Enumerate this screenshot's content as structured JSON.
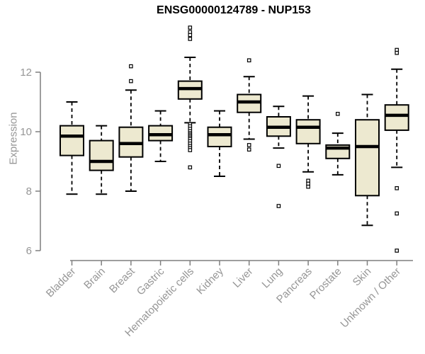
{
  "chart_data": {
    "type": "boxplot",
    "title": "ENSG00000124789 - NUP153",
    "ylabel": "Expression",
    "xlabel": "",
    "yticks": [
      6,
      8,
      10,
      12
    ],
    "ylim": [
      5.9,
      13.6
    ],
    "grid": false,
    "legend_position": "none",
    "box_fill": "#EDE9D0",
    "box_stroke": "#000000",
    "axis_color": "#7F7F7F",
    "label_color": "#969696",
    "title_color": "#000000",
    "categories": [
      "Bladder",
      "Brain",
      "Breast",
      "Gastric",
      "Hematopoietic cells",
      "Kidney",
      "Liver",
      "Lung",
      "Pancreas",
      "Prostate",
      "Skin",
      "Unknown / Other"
    ],
    "series": [
      {
        "category": "Bladder",
        "whisker_low": 7.9,
        "q1": 9.2,
        "median": 9.85,
        "q3": 10.2,
        "whisker_high": 11.0,
        "outliers": []
      },
      {
        "category": "Brain",
        "whisker_low": 7.9,
        "q1": 8.7,
        "median": 9.0,
        "q3": 9.7,
        "whisker_high": 10.2,
        "outliers": []
      },
      {
        "category": "Breast",
        "whisker_low": 8.0,
        "q1": 9.15,
        "median": 9.6,
        "q3": 10.15,
        "whisker_high": 11.4,
        "outliers": [
          11.7,
          12.2
        ]
      },
      {
        "category": "Gastric",
        "whisker_low": 9.0,
        "q1": 9.7,
        "median": 9.9,
        "q3": 10.2,
        "whisker_high": 10.7,
        "outliers": []
      },
      {
        "category": "Hematopoietic cells",
        "whisker_low": 10.3,
        "q1": 11.1,
        "median": 11.45,
        "q3": 11.7,
        "whisker_high": 12.5,
        "outliers": [
          13.5,
          13.35,
          13.25,
          13.12,
          10.25,
          10.18,
          10.1,
          10.02,
          9.95,
          9.9,
          9.85,
          9.8,
          9.75,
          9.68,
          9.6,
          9.52,
          9.45,
          9.38,
          8.8
        ]
      },
      {
        "category": "Kidney",
        "whisker_low": 8.5,
        "q1": 9.5,
        "median": 9.9,
        "q3": 10.15,
        "whisker_high": 10.7,
        "outliers": []
      },
      {
        "category": "Liver",
        "whisker_low": 9.75,
        "q1": 10.65,
        "median": 11.0,
        "q3": 11.25,
        "whisker_high": 11.85,
        "outliers": [
          12.4,
          9.55,
          9.4
        ]
      },
      {
        "category": "Lung",
        "whisker_low": 9.45,
        "q1": 9.85,
        "median": 10.15,
        "q3": 10.5,
        "whisker_high": 10.85,
        "outliers": [
          8.85,
          7.5
        ]
      },
      {
        "category": "Pancreas",
        "whisker_low": 8.65,
        "q1": 9.6,
        "median": 10.15,
        "q3": 10.4,
        "whisker_high": 11.2,
        "outliers": [
          8.35,
          8.25,
          8.15
        ]
      },
      {
        "category": "Prostate",
        "whisker_low": 8.55,
        "q1": 9.1,
        "median": 9.45,
        "q3": 9.55,
        "whisker_high": 9.95,
        "outliers": [
          10.6
        ]
      },
      {
        "category": "Skin",
        "whisker_low": 6.85,
        "q1": 7.85,
        "median": 9.5,
        "q3": 10.4,
        "whisker_high": 11.25,
        "outliers": []
      },
      {
        "category": "Unknown / Other",
        "whisker_low": 8.8,
        "q1": 10.05,
        "median": 10.55,
        "q3": 10.9,
        "whisker_high": 12.1,
        "outliers": [
          12.75,
          12.65,
          8.1,
          7.25,
          6.0
        ]
      }
    ]
  }
}
